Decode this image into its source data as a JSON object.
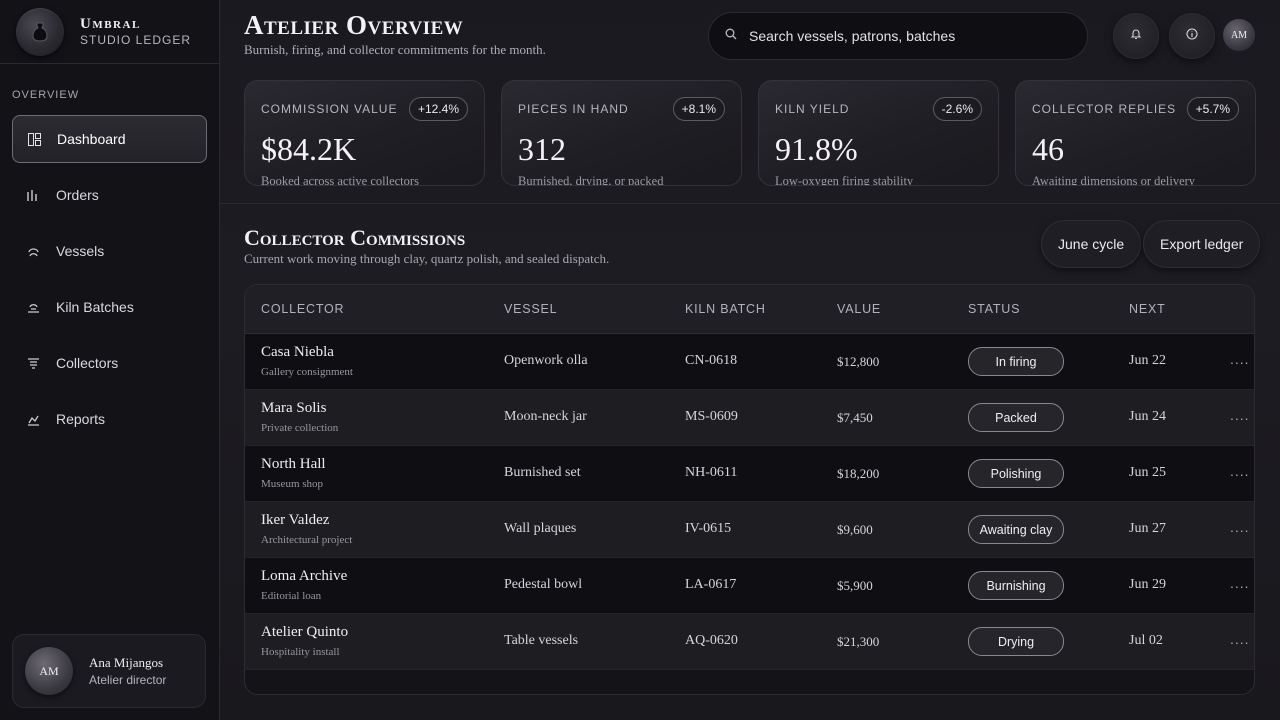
{
  "brand": {
    "name": "Umbral",
    "subtitle": "Studio Ledger",
    "logo_icon": "urn-icon"
  },
  "nav": {
    "caption": "OVERVIEW",
    "items": [
      {
        "label": "Dashboard",
        "icon": "dashboard-icon",
        "active": true
      },
      {
        "label": "Orders",
        "icon": "bars-icon"
      },
      {
        "label": "Vessels",
        "icon": "vessel-icon"
      },
      {
        "label": "Kiln Batches",
        "icon": "kiln-icon"
      },
      {
        "label": "Collectors",
        "icon": "list-icon"
      },
      {
        "label": "Reports",
        "icon": "chart-icon"
      }
    ]
  },
  "user": {
    "initials": "AM",
    "name": "Ana Mijangos",
    "role": "Atelier director"
  },
  "header": {
    "title": "Atelier Overview",
    "subtitle": "Burnish, firing, and collector commitments for the month.",
    "search_placeholder": "Search vessels, patrons, batches",
    "avatar_initials": "AM"
  },
  "stats": [
    {
      "label": "Commission Value",
      "badge": "+12.4%",
      "value": "$84.2K",
      "note": "Booked across active collectors"
    },
    {
      "label": "Pieces in Hand",
      "badge": "+8.1%",
      "value": "312",
      "note": "Burnished, drying, or packed"
    },
    {
      "label": "Kiln Yield",
      "badge": "-2.6%",
      "value": "91.8%",
      "note": "Low-oxygen firing stability"
    },
    {
      "label": "Collector Replies",
      "badge": "+5.7%",
      "value": "46",
      "note": "Awaiting dimensions or delivery"
    }
  ],
  "section": {
    "title": "Collector Commissions",
    "subtitle": "Current work moving through clay, quartz polish, and sealed dispatch.",
    "cycle_button": "June cycle",
    "export_button": "Export ledger"
  },
  "table": {
    "columns": [
      "Collector",
      "Vessel",
      "Kiln Batch",
      "Value",
      "Status",
      "Next"
    ],
    "rows": [
      {
        "collector": "Casa Niebla",
        "type": "Gallery consignment",
        "vessel": "Openwork olla",
        "batch": "CN-0618",
        "value": "$12,800",
        "status": "In firing",
        "next": "Jun 22"
      },
      {
        "collector": "Mara Solis",
        "type": "Private collection",
        "vessel": "Moon-neck jar",
        "batch": "MS-0609",
        "value": "$7,450",
        "status": "Packed",
        "next": "Jun 24"
      },
      {
        "collector": "North Hall",
        "type": "Museum shop",
        "vessel": "Burnished set",
        "batch": "NH-0611",
        "value": "$18,200",
        "status": "Polishing",
        "next": "Jun 25"
      },
      {
        "collector": "Iker Valdez",
        "type": "Architectural project",
        "vessel": "Wall plaques",
        "batch": "IV-0615",
        "value": "$9,600",
        "status": "Awaiting clay",
        "next": "Jun 27"
      },
      {
        "collector": "Loma Archive",
        "type": "Editorial loan",
        "vessel": "Pedestal bowl",
        "batch": "LA-0617",
        "value": "$5,900",
        "status": "Burnishing",
        "next": "Jun 29"
      },
      {
        "collector": "Atelier Quinto",
        "type": "Hospitality install",
        "vessel": "Table vessels",
        "batch": "AQ-0620",
        "value": "$21,300",
        "status": "Drying",
        "next": "Jul 02"
      }
    ]
  }
}
